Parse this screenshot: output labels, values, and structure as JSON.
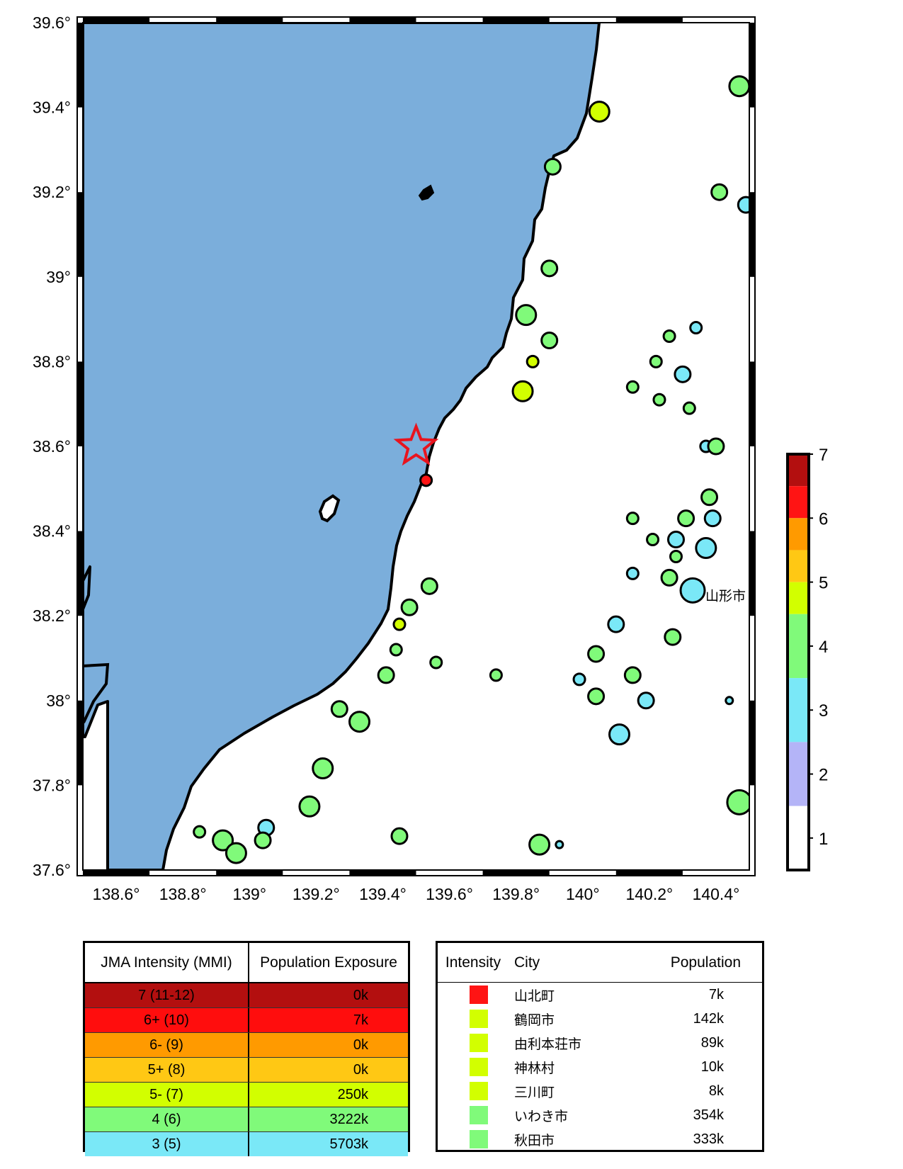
{
  "map": {
    "lon_ticks": [
      "138.6°",
      "138.8°",
      "139°",
      "139.2°",
      "139.4°",
      "139.6°",
      "139.8°",
      "140°",
      "140.2°",
      "140.4°"
    ],
    "lon_values": [
      138.6,
      138.8,
      139.0,
      139.2,
      139.4,
      139.6,
      139.8,
      140.0,
      140.2,
      140.4
    ],
    "lat_ticks": [
      "39.6°",
      "39.4°",
      "39.2°",
      "39°",
      "38.8°",
      "38.6°",
      "38.4°",
      "38.2°",
      "38°",
      "37.8°",
      "37.6°"
    ],
    "lat_values": [
      39.6,
      39.4,
      39.2,
      39.0,
      38.8,
      38.6,
      38.4,
      38.2,
      38.0,
      37.8,
      37.6
    ],
    "lon_range": [
      138.5,
      140.5
    ],
    "lat_range": [
      37.6,
      39.6
    ],
    "colors": {
      "sea": "#7baedb",
      "land": "#ffffff",
      "coast": "#000000",
      "epicenter": "#e8141e"
    },
    "epicenter": {
      "lon": 139.5,
      "lat": 38.6
    },
    "city_label": {
      "text": "山形市",
      "lon": 140.33,
      "lat": 38.25
    },
    "stations": [
      {
        "lon": 140.47,
        "lat": 39.45,
        "i": 4,
        "s": "l"
      },
      {
        "lon": 140.05,
        "lat": 39.39,
        "i": 5,
        "s": "l"
      },
      {
        "lon": 139.91,
        "lat": 39.26,
        "i": 4,
        "s": "m"
      },
      {
        "lon": 140.41,
        "lat": 39.2,
        "i": 4,
        "s": "m"
      },
      {
        "lon": 140.49,
        "lat": 39.17,
        "i": 3,
        "s": "m"
      },
      {
        "lon": 139.9,
        "lat": 39.02,
        "i": 4,
        "s": "m"
      },
      {
        "lon": 139.83,
        "lat": 38.91,
        "i": 4,
        "s": "l"
      },
      {
        "lon": 140.34,
        "lat": 38.88,
        "i": 3,
        "s": "s"
      },
      {
        "lon": 139.9,
        "lat": 38.85,
        "i": 4,
        "s": "m"
      },
      {
        "lon": 140.26,
        "lat": 38.86,
        "i": 4,
        "s": "s"
      },
      {
        "lon": 139.85,
        "lat": 38.8,
        "i": 5,
        "s": "s"
      },
      {
        "lon": 140.22,
        "lat": 38.8,
        "i": 4,
        "s": "s"
      },
      {
        "lon": 140.3,
        "lat": 38.77,
        "i": 3,
        "s": "m"
      },
      {
        "lon": 140.15,
        "lat": 38.74,
        "i": 4,
        "s": "s"
      },
      {
        "lon": 139.82,
        "lat": 38.73,
        "i": 5,
        "s": "l"
      },
      {
        "lon": 140.23,
        "lat": 38.71,
        "i": 4,
        "s": "s"
      },
      {
        "lon": 140.32,
        "lat": 38.69,
        "i": 4,
        "s": "s"
      },
      {
        "lon": 140.37,
        "lat": 38.6,
        "i": 3,
        "s": "s"
      },
      {
        "lon": 140.4,
        "lat": 38.6,
        "i": 4,
        "s": "m"
      },
      {
        "lon": 139.53,
        "lat": 38.52,
        "i": 6,
        "s": "s"
      },
      {
        "lon": 140.38,
        "lat": 38.48,
        "i": 4,
        "s": "m"
      },
      {
        "lon": 140.39,
        "lat": 38.43,
        "i": 3,
        "s": "m"
      },
      {
        "lon": 140.15,
        "lat": 38.43,
        "i": 4,
        "s": "s"
      },
      {
        "lon": 140.31,
        "lat": 38.43,
        "i": 4,
        "s": "m"
      },
      {
        "lon": 140.21,
        "lat": 38.38,
        "i": 4,
        "s": "s"
      },
      {
        "lon": 140.28,
        "lat": 38.38,
        "i": 3,
        "s": "m"
      },
      {
        "lon": 140.37,
        "lat": 38.36,
        "i": 3,
        "s": "l"
      },
      {
        "lon": 140.28,
        "lat": 38.34,
        "i": 4,
        "s": "s"
      },
      {
        "lon": 140.15,
        "lat": 38.3,
        "i": 3,
        "s": "s"
      },
      {
        "lon": 140.26,
        "lat": 38.29,
        "i": 4,
        "s": "m"
      },
      {
        "lon": 140.33,
        "lat": 38.26,
        "i": 3,
        "s": "xl"
      },
      {
        "lon": 139.54,
        "lat": 38.27,
        "i": 4,
        "s": "m"
      },
      {
        "lon": 139.48,
        "lat": 38.22,
        "i": 4,
        "s": "m"
      },
      {
        "lon": 139.45,
        "lat": 38.18,
        "i": 5,
        "s": "s"
      },
      {
        "lon": 140.1,
        "lat": 38.18,
        "i": 3,
        "s": "m"
      },
      {
        "lon": 140.27,
        "lat": 38.15,
        "i": 4,
        "s": "m"
      },
      {
        "lon": 139.44,
        "lat": 38.12,
        "i": 4,
        "s": "s"
      },
      {
        "lon": 140.04,
        "lat": 38.11,
        "i": 4,
        "s": "m"
      },
      {
        "lon": 139.56,
        "lat": 38.09,
        "i": 4,
        "s": "s"
      },
      {
        "lon": 139.41,
        "lat": 38.06,
        "i": 4,
        "s": "m"
      },
      {
        "lon": 139.74,
        "lat": 38.06,
        "i": 4,
        "s": "s"
      },
      {
        "lon": 140.15,
        "lat": 38.06,
        "i": 4,
        "s": "m"
      },
      {
        "lon": 139.99,
        "lat": 38.05,
        "i": 3,
        "s": "s"
      },
      {
        "lon": 140.04,
        "lat": 38.01,
        "i": 4,
        "s": "m"
      },
      {
        "lon": 140.19,
        "lat": 38.0,
        "i": 3,
        "s": "m"
      },
      {
        "lon": 140.44,
        "lat": 38.0,
        "i": 3,
        "s": "xs"
      },
      {
        "lon": 139.27,
        "lat": 37.98,
        "i": 4,
        "s": "m"
      },
      {
        "lon": 139.33,
        "lat": 37.95,
        "i": 4,
        "s": "l"
      },
      {
        "lon": 140.11,
        "lat": 37.92,
        "i": 3,
        "s": "l"
      },
      {
        "lon": 139.22,
        "lat": 37.84,
        "i": 4,
        "s": "l"
      },
      {
        "lon": 140.47,
        "lat": 37.76,
        "i": 4,
        "s": "xl"
      },
      {
        "lon": 139.18,
        "lat": 37.75,
        "i": 4,
        "s": "l"
      },
      {
        "lon": 138.85,
        "lat": 37.69,
        "i": 4,
        "s": "s"
      },
      {
        "lon": 139.05,
        "lat": 37.7,
        "i": 3,
        "s": "m"
      },
      {
        "lon": 138.92,
        "lat": 37.67,
        "i": 4,
        "s": "l"
      },
      {
        "lon": 139.04,
        "lat": 37.67,
        "i": 4,
        "s": "m"
      },
      {
        "lon": 139.45,
        "lat": 37.68,
        "i": 4,
        "s": "m"
      },
      {
        "lon": 138.96,
        "lat": 37.64,
        "i": 4,
        "s": "l"
      },
      {
        "lon": 139.87,
        "lat": 37.66,
        "i": 4,
        "s": "l"
      },
      {
        "lon": 139.93,
        "lat": 37.66,
        "i": 3,
        "s": "xs"
      }
    ]
  },
  "colorbar": {
    "labels": [
      "7",
      "6",
      "5",
      "4",
      "3",
      "2",
      "1"
    ],
    "bands_top_to_bottom": [
      "#b30f0f",
      "#ff1414",
      "#ff9a00",
      "#ffc814",
      "#d2ff00",
      "#80fa7a",
      "#7ae8f7",
      "#b4b4f7",
      "#ffffff"
    ]
  },
  "population_table": {
    "header_intensity": "JMA Intensity (MMI)",
    "header_exposure": "Population Exposure",
    "rows": [
      {
        "intensity": "7 (11-12)",
        "exposure": "0k",
        "color": "#b30f0f"
      },
      {
        "intensity": "6+ (10)",
        "exposure": "7k",
        "color": "#ff0d0d"
      },
      {
        "intensity": "6- (9)",
        "exposure": "0k",
        "color": "#ff9a00"
      },
      {
        "intensity": "5+ (8)",
        "exposure": "0k",
        "color": "#ffc814"
      },
      {
        "intensity": "5- (7)",
        "exposure": "250k",
        "color": "#d2ff00"
      },
      {
        "intensity": "4 (6)",
        "exposure": "3222k",
        "color": "#80fa7a"
      },
      {
        "intensity": "3 (5)",
        "exposure": "5703k",
        "color": "#7ae8f7"
      }
    ]
  },
  "city_table": {
    "header_intensity": "Intensity",
    "header_city": "City",
    "header_population": "Population",
    "rows": [
      {
        "city": "山北町",
        "population": "7k",
        "color": "#ff1414"
      },
      {
        "city": "鶴岡市",
        "population": "142k",
        "color": "#d2ff00"
      },
      {
        "city": "由利本荘市",
        "population": "89k",
        "color": "#d2ff00"
      },
      {
        "city": "神林村",
        "population": "10k",
        "color": "#d2ff00"
      },
      {
        "city": "三川町",
        "population": "8k",
        "color": "#d2ff00"
      },
      {
        "city": "いわき市",
        "population": "354k",
        "color": "#80fa7a"
      },
      {
        "city": "秋田市",
        "population": "333k",
        "color": "#80fa7a"
      }
    ]
  }
}
